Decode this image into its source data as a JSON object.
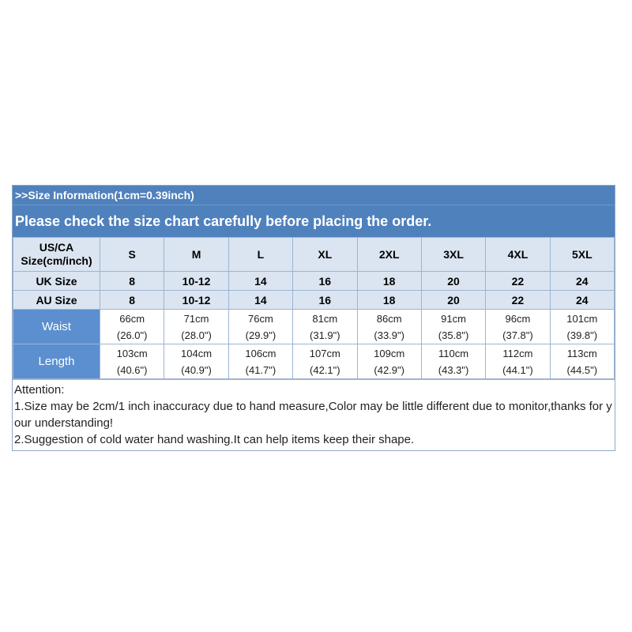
{
  "banner": {
    "line1": ">>Size  Information(1cm=0.39inch)",
    "line2": "Please check the size chart carefully before placing the order."
  },
  "table": {
    "us_label_line1": "US/CA",
    "us_label_line2": "Size(cm/inch)",
    "us_sizes": [
      "S",
      "M",
      "L",
      "XL",
      "2XL",
      "3XL",
      "4XL",
      "5XL"
    ],
    "uk_label": "UK Size",
    "uk_sizes": [
      "8",
      "10-12",
      "14",
      "16",
      "18",
      "20",
      "22",
      "24"
    ],
    "au_label": "AU Size",
    "au_sizes": [
      "8",
      "10-12",
      "14",
      "16",
      "18",
      "20",
      "22",
      "24"
    ],
    "waist_label": "Waist",
    "waist_cm": [
      "66cm",
      "71cm",
      "76cm",
      "81cm",
      "86cm",
      "91cm",
      "96cm",
      "101cm"
    ],
    "waist_in": [
      "(26.0\")",
      "(28.0\")",
      "(29.9\")",
      "(31.9\")",
      "(33.9\")",
      "(35.8\")",
      "(37.8\")",
      "(39.8\")"
    ],
    "length_label": "Length",
    "length_cm": [
      "103cm",
      "104cm",
      "106cm",
      "107cm",
      "109cm",
      "110cm",
      "112cm",
      "113cm"
    ],
    "length_in": [
      "(40.6\")",
      "(40.9\")",
      "(41.7\")",
      "(42.1\")",
      "(42.9\")",
      "(43.3\")",
      "(44.1\")",
      "(44.5\")"
    ]
  },
  "notes": {
    "title": "Attention:",
    "line1": "1.Size may be 2cm/1 inch inaccuracy due to hand measure,Color may be little different due to monitor,thanks for your understanding!",
    "line2": "2.Suggestion of cold water hand washing.It can help items keep their shape."
  }
}
